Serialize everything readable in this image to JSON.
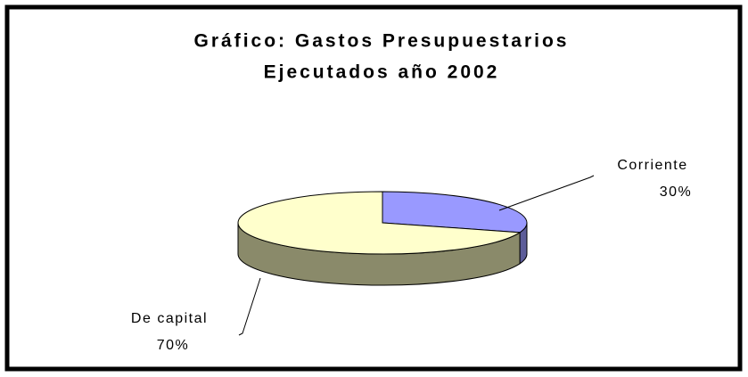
{
  "chart_data": {
    "type": "pie",
    "title": [
      "Gráfico: Gastos Presupuestarios",
      "Ejecutados año 2002"
    ],
    "categories": [
      "Corriente",
      "De capital"
    ],
    "values": [
      30,
      70
    ],
    "value_labels": [
      "30%",
      "70%"
    ],
    "colors": [
      "#9999ff",
      "#ffffcc"
    ],
    "side_colors": [
      "#5c5c99",
      "#8a8a6a"
    ]
  }
}
